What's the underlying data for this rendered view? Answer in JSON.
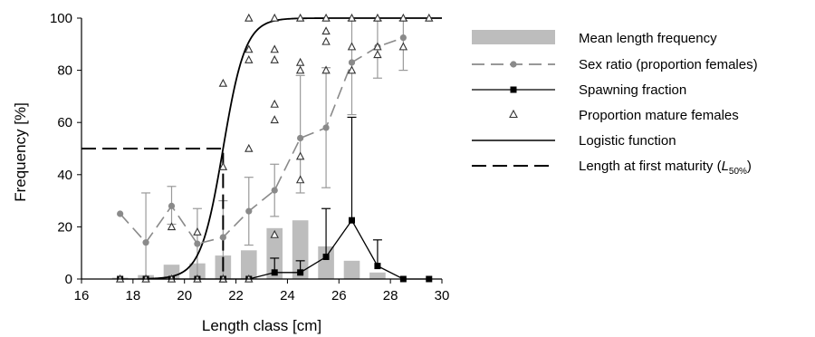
{
  "chart_data": {
    "type": "bar",
    "xlabel": "Length class [cm]",
    "ylabel": "Frequency [%]",
    "xlim": [
      16,
      30
    ],
    "ylim": [
      0,
      100
    ],
    "x_ticks": [
      16,
      18,
      20,
      22,
      24,
      26,
      28,
      30
    ],
    "y_ticks": [
      0,
      20,
      40,
      60,
      80,
      100
    ],
    "grid": false,
    "legend_position": "right",
    "legend": [
      {
        "key": "bars",
        "label": "Mean length frequency"
      },
      {
        "key": "sex",
        "label": "Sex ratio (proportion females)"
      },
      {
        "key": "spawn",
        "label": "Spawning fraction"
      },
      {
        "key": "mature",
        "label": "Proportion mature females"
      },
      {
        "key": "logistic",
        "label": "Logistic function"
      },
      {
        "key": "l50",
        "label_prefix": "Length at first maturity (",
        "label_var": "L",
        "label_sub": "50%",
        "label_suffix": ")"
      }
    ],
    "colors": {
      "bars": "#bdbdbd",
      "sex_ratio": "#8a8a8a",
      "error_bars": "#9a9a9a",
      "spawning": "#000000",
      "mature": "#333333",
      "logistic": "#000000"
    },
    "series": [
      {
        "key": "bars",
        "x": [
          17.5,
          18.5,
          19.5,
          20.5,
          21.5,
          22.5,
          23.5,
          24.5,
          25.5,
          26.5,
          27.5
        ],
        "values": [
          0.5,
          1.5,
          5.5,
          6,
          9,
          11,
          19.5,
          22.5,
          12.5,
          7,
          2.5
        ]
      },
      {
        "key": "sex",
        "x": [
          17.5,
          18.5,
          19.5,
          20.5,
          21.5,
          22.5,
          23.5,
          24.5,
          25.5,
          26.5,
          27.5,
          28.5
        ],
        "values": [
          25,
          14,
          28,
          13.5,
          16,
          26,
          34,
          54,
          58,
          83,
          89,
          92.5
        ],
        "err_lo": [
          null,
          0,
          21,
          0,
          0,
          13,
          24,
          33,
          35,
          63,
          77,
          80
        ],
        "err_hi": [
          null,
          33,
          35.5,
          27,
          30,
          39,
          44,
          78,
          81,
          99,
          99,
          99
        ]
      },
      {
        "key": "spawn",
        "x": [
          17.5,
          18.5,
          19.5,
          20.5,
          21.5,
          22.5,
          23.5,
          24.5,
          25.5,
          26.5,
          27.5,
          28.5,
          29.5
        ],
        "values": [
          0,
          0,
          0,
          0,
          0,
          0,
          2.5,
          2.5,
          8.5,
          22.5,
          5,
          0,
          0
        ],
        "err_hi": [
          null,
          null,
          null,
          null,
          null,
          null,
          8,
          7,
          27,
          62,
          15,
          null,
          null
        ]
      },
      {
        "key": "mature",
        "points": [
          [
            17.5,
            0
          ],
          [
            18.5,
            0
          ],
          [
            19.5,
            0
          ],
          [
            19.5,
            20
          ],
          [
            20.5,
            0
          ],
          [
            20.5,
            18
          ],
          [
            21.5,
            75
          ],
          [
            21.5,
            43
          ],
          [
            21.5,
            0
          ],
          [
            21.5,
            0
          ],
          [
            22.5,
            100
          ],
          [
            22.5,
            88
          ],
          [
            22.5,
            84
          ],
          [
            22.5,
            50
          ],
          [
            22.5,
            0
          ],
          [
            23.5,
            100
          ],
          [
            23.5,
            88
          ],
          [
            23.5,
            84
          ],
          [
            23.5,
            67
          ],
          [
            23.5,
            61
          ],
          [
            23.5,
            17
          ],
          [
            24.5,
            100
          ],
          [
            24.5,
            83
          ],
          [
            24.5,
            80
          ],
          [
            24.5,
            47
          ],
          [
            24.5,
            38
          ],
          [
            25.5,
            100
          ],
          [
            25.5,
            95
          ],
          [
            25.5,
            91
          ],
          [
            25.5,
            80
          ],
          [
            26.5,
            100
          ],
          [
            26.5,
            89
          ],
          [
            26.5,
            80
          ],
          [
            27.5,
            100
          ],
          [
            27.5,
            89
          ],
          [
            27.5,
            86
          ],
          [
            28.5,
            100
          ],
          [
            28.5,
            89
          ],
          [
            29.5,
            100
          ]
        ]
      },
      {
        "key": "logistic",
        "l50": 21.5,
        "slope": 2.3
      }
    ]
  }
}
